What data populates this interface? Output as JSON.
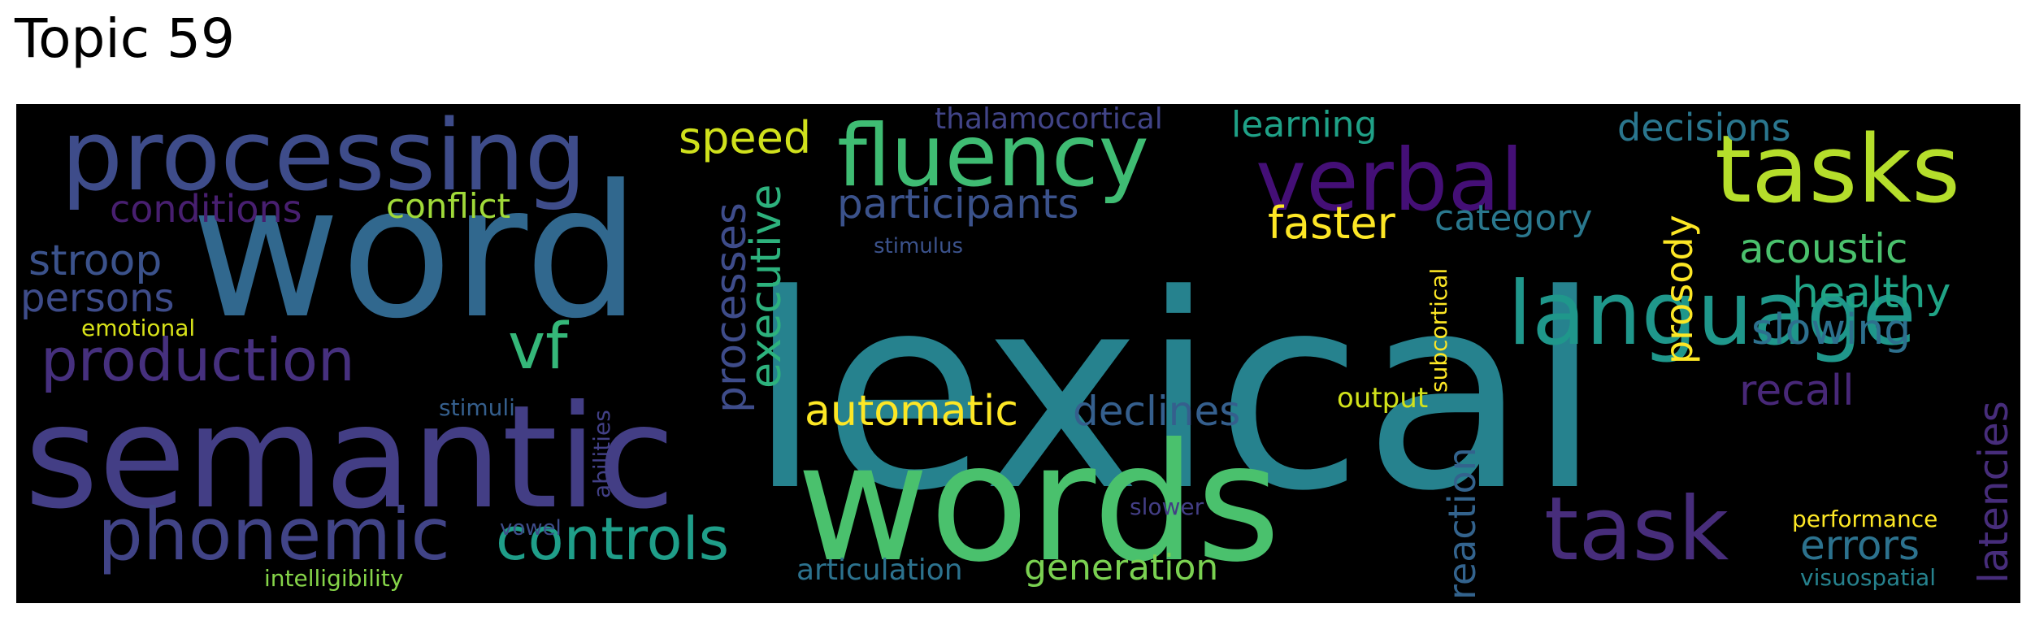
{
  "title": "Topic 59",
  "background": "#000000",
  "words": [
    {
      "text": "lexical",
      "color": "#26828e",
      "rotate": false
    },
    {
      "text": "word",
      "color": "#31688e",
      "rotate": false
    },
    {
      "text": "words",
      "color": "#4ac16d",
      "rotate": false
    },
    {
      "text": "semantic",
      "color": "#433e85",
      "rotate": false
    },
    {
      "text": "processing",
      "color": "#3e4c8a",
      "rotate": false
    },
    {
      "text": "fluency",
      "color": "#3fbc73",
      "rotate": false
    },
    {
      "text": "verbal",
      "color": "#440f76",
      "rotate": false
    },
    {
      "text": "tasks",
      "color": "#b5de2b",
      "rotate": false
    },
    {
      "text": "language",
      "color": "#1f978b",
      "rotate": false
    },
    {
      "text": "task",
      "color": "#472d7b",
      "rotate": false
    },
    {
      "text": "phonemic",
      "color": "#414487",
      "rotate": false
    },
    {
      "text": "production",
      "color": "#46307e",
      "rotate": false
    },
    {
      "text": "controls",
      "color": "#1f9e89",
      "rotate": false
    },
    {
      "text": "vf",
      "color": "#35b779",
      "rotate": false
    },
    {
      "text": "participants",
      "color": "#3b528b",
      "rotate": false
    },
    {
      "text": "automatic",
      "color": "#fde725",
      "rotate": false
    },
    {
      "text": "declines",
      "color": "#355f8d",
      "rotate": false
    },
    {
      "text": "conditions",
      "color": "#481f70",
      "rotate": false
    },
    {
      "text": "conflict",
      "color": "#a0da39",
      "rotate": false
    },
    {
      "text": "stroop",
      "color": "#3b528b",
      "rotate": false
    },
    {
      "text": "persons",
      "color": "#3e4c8a",
      "rotate": false
    },
    {
      "text": "speed",
      "color": "#d0e11c",
      "rotate": false
    },
    {
      "text": "learning",
      "color": "#1fa187",
      "rotate": false
    },
    {
      "text": "thalamocortical",
      "color": "#414487",
      "rotate": false
    },
    {
      "text": "decisions",
      "color": "#2a768e",
      "rotate": false
    },
    {
      "text": "faster",
      "color": "#fde725",
      "rotate": false
    },
    {
      "text": "category",
      "color": "#2a788e",
      "rotate": false
    },
    {
      "text": "acoustic",
      "color": "#4ac16d",
      "rotate": false
    },
    {
      "text": "healthy",
      "color": "#20a486",
      "rotate": false
    },
    {
      "text": "slowing",
      "color": "#2d708e",
      "rotate": false
    },
    {
      "text": "recall",
      "color": "#482878",
      "rotate": false
    },
    {
      "text": "errors",
      "color": "#2c728e",
      "rotate": false
    },
    {
      "text": "generation",
      "color": "#7ad151",
      "rotate": false
    },
    {
      "text": "articulation",
      "color": "#2c728e",
      "rotate": false
    },
    {
      "text": "output",
      "color": "#d2e21b",
      "rotate": false
    },
    {
      "text": "performance",
      "color": "#fde725",
      "rotate": false
    },
    {
      "text": "visuospatial",
      "color": "#26828e",
      "rotate": false
    },
    {
      "text": "emotional",
      "color": "#d8e219",
      "rotate": false
    },
    {
      "text": "stimuli",
      "color": "#355f8d",
      "rotate": false
    },
    {
      "text": "stimulus",
      "color": "#3b528b",
      "rotate": false
    },
    {
      "text": "vowel",
      "color": "#3e4c8a",
      "rotate": false
    },
    {
      "text": "slower",
      "color": "#433e85",
      "rotate": false
    },
    {
      "text": "intelligibility",
      "color": "#86d549",
      "rotate": false
    },
    {
      "text": "processes",
      "color": "#3e4c8a",
      "rotate": true
    },
    {
      "text": "executive",
      "color": "#2db27d",
      "rotate": true
    },
    {
      "text": "prosody",
      "color": "#fde725",
      "rotate": true
    },
    {
      "text": "reaction",
      "color": "#33638d",
      "rotate": true
    },
    {
      "text": "subcortical",
      "color": "#fde725",
      "rotate": true
    },
    {
      "text": "latencies",
      "color": "#472d7b",
      "rotate": true
    },
    {
      "text": "abilities",
      "color": "#424086",
      "rotate": true
    }
  ]
}
